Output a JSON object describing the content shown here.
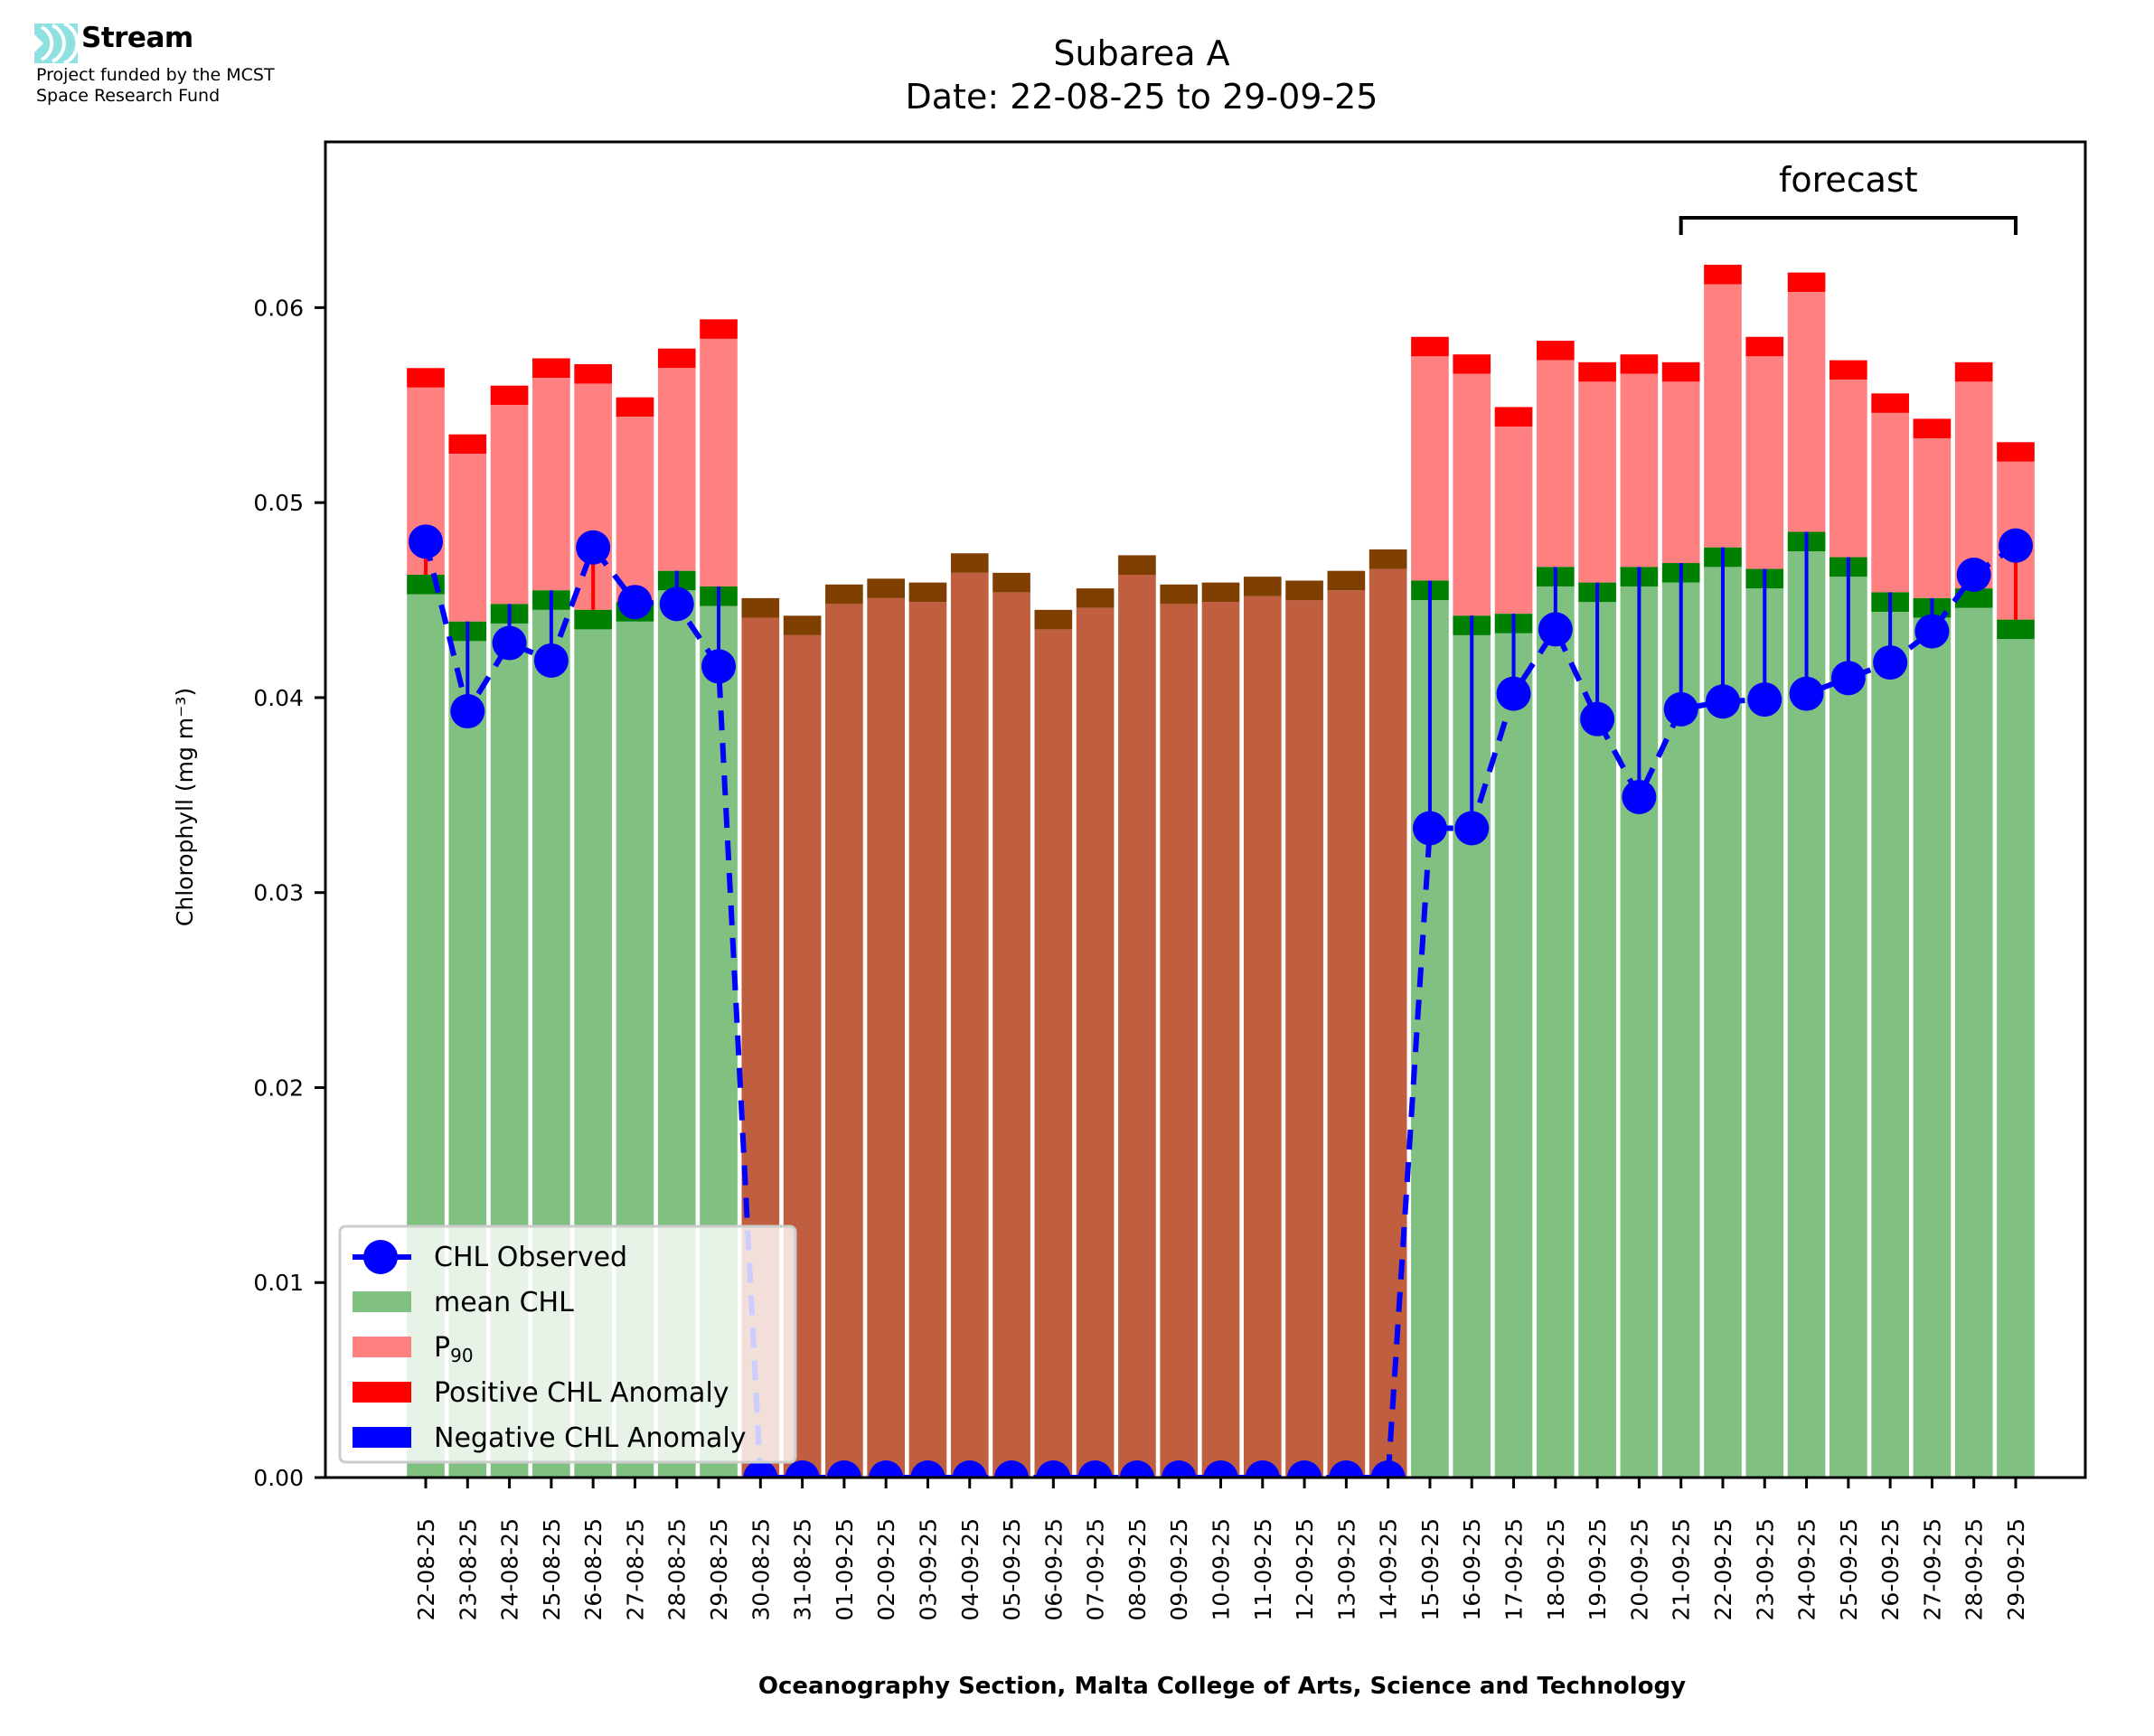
{
  "logo": {
    "icon": "stream-waves-icon",
    "name": "Stream",
    "subtitle_line1": "Project funded by the MCST",
    "subtitle_line2": "Space Research Fund",
    "color": "#8fe0e0"
  },
  "chart_data": {
    "type": "bar",
    "title": "Subarea A",
    "subtitle": "Date: 22-08-25 to 29-09-25",
    "xlabel": "Oceanography Section, Malta College of Arts, Science and Technology",
    "ylabel": "Chlorophyll (mg m⁻³)",
    "ylim": [
      0,
      0.0685
    ],
    "yticks": [
      "0.00",
      "0.01",
      "0.02",
      "0.03",
      "0.04",
      "0.05",
      "0.06"
    ],
    "ytick_values": [
      0,
      0.01,
      0.02,
      0.03,
      0.04,
      0.05,
      0.06
    ],
    "grid": false,
    "legend_position": "lower-left",
    "legend": [
      {
        "label": "CHL Observed",
        "kind": "line-marker",
        "color": "#0000ff"
      },
      {
        "label": "mean CHL",
        "kind": "patch",
        "color": "#80c080"
      },
      {
        "label": "P",
        "sub": "90",
        "kind": "patch",
        "color": "#ff8080"
      },
      {
        "label": "Positive CHL Anomaly",
        "kind": "patch",
        "color": "#ff0000"
      },
      {
        "label": "Negative CHL Anomaly",
        "kind": "patch",
        "color": "#0000ff"
      }
    ],
    "annotation": {
      "text": "forecast",
      "from": "21-09-25",
      "to": "29-09-25"
    },
    "colors": {
      "mean": "#80c080",
      "mean_band": "#008000",
      "p90": "#ff8080",
      "p90_band": "#ff0000",
      "nodata": "#c05e40",
      "nodata_band": "#7f3f00",
      "observed": "#0000ff",
      "positive": "#ff0000",
      "negative": "#0000ff"
    },
    "categories": [
      "22-08-25",
      "23-08-25",
      "24-08-25",
      "25-08-25",
      "26-08-25",
      "27-08-25",
      "28-08-25",
      "29-08-25",
      "30-08-25",
      "31-08-25",
      "01-09-25",
      "02-09-25",
      "03-09-25",
      "04-09-25",
      "05-09-25",
      "06-09-25",
      "07-09-25",
      "08-09-25",
      "09-09-25",
      "10-09-25",
      "11-09-25",
      "12-09-25",
      "13-09-25",
      "14-09-25",
      "15-09-25",
      "16-09-25",
      "17-09-25",
      "18-09-25",
      "19-09-25",
      "20-09-25",
      "21-09-25",
      "22-09-25",
      "23-09-25",
      "24-09-25",
      "25-09-25",
      "26-09-25",
      "27-09-25",
      "28-09-25",
      "29-09-25"
    ],
    "series": [
      {
        "name": "mean CHL",
        "values": [
          0.0463,
          0.0439,
          0.0448,
          0.0455,
          0.0445,
          0.0449,
          0.0465,
          0.0457,
          0.0451,
          0.0442,
          0.0458,
          0.0461,
          0.0459,
          0.0474,
          0.0464,
          0.0445,
          0.0456,
          0.0473,
          0.0458,
          0.0459,
          0.0462,
          0.046,
          0.0465,
          0.0476,
          0.046,
          0.0442,
          0.0443,
          0.0467,
          0.0459,
          0.0467,
          0.0469,
          0.0477,
          0.0466,
          0.0485,
          0.0472,
          0.0454,
          0.0451,
          0.0456,
          0.044
        ]
      },
      {
        "name": "P90",
        "values": [
          0.0559,
          0.0525,
          0.055,
          0.0564,
          0.0561,
          0.0544,
          0.0569,
          0.0584,
          null,
          null,
          null,
          null,
          null,
          null,
          null,
          null,
          null,
          null,
          null,
          null,
          null,
          null,
          null,
          null,
          0.0575,
          0.0566,
          0.0539,
          0.0573,
          0.0562,
          0.0566,
          0.0562,
          0.0612,
          0.0575,
          0.0608,
          0.0563,
          0.0546,
          0.0533,
          0.0562,
          0.0521
        ]
      },
      {
        "name": "CHL Observed",
        "values": [
          0.048,
          0.0393,
          0.0428,
          0.0419,
          0.0477,
          0.0449,
          0.0448,
          0.0416,
          0,
          0,
          0,
          0,
          0,
          0,
          0,
          0,
          0,
          0,
          0,
          0,
          0,
          0,
          0,
          0,
          0.0333,
          0.0333,
          0.0402,
          0.0435,
          0.0389,
          0.0349,
          0.0394,
          0.0398,
          0.0399,
          0.0402,
          0.041,
          0.0418,
          0.0434,
          0.0463,
          0.0478
        ]
      }
    ],
    "no_data": [
      false,
      false,
      false,
      false,
      false,
      false,
      false,
      false,
      true,
      true,
      true,
      true,
      true,
      true,
      true,
      true,
      true,
      true,
      true,
      true,
      true,
      true,
      true,
      true,
      false,
      false,
      false,
      false,
      false,
      false,
      false,
      false,
      false,
      false,
      false,
      false,
      false,
      false,
      false
    ]
  }
}
